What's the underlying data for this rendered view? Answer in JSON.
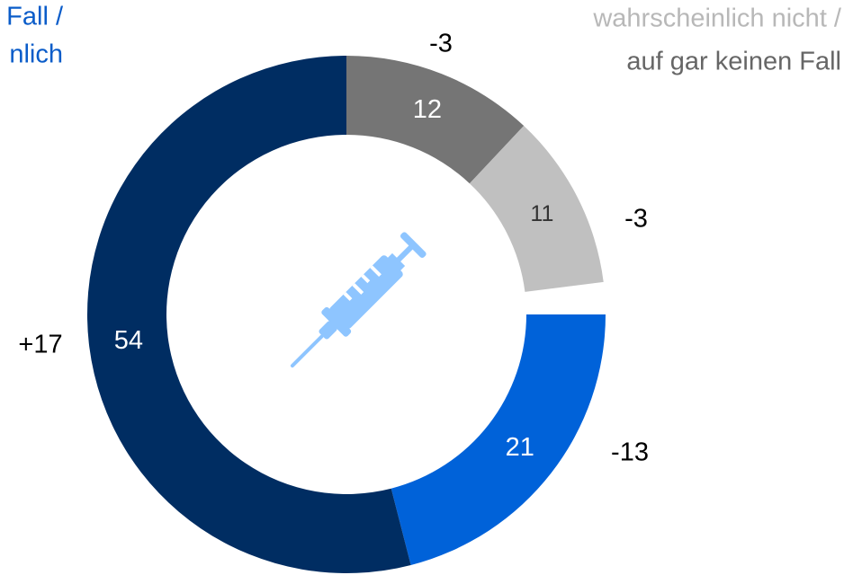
{
  "chart_data": {
    "type": "donut",
    "categories": [
      "Fall /",
      "nlich",
      "wahrscheinlich nicht /",
      "auf gar keinen Fall"
    ],
    "series": [
      {
        "name": "auf gar keinen Fall",
        "color": "#757575",
        "label_color": "#ffffff"
      },
      {
        "name": "wahrscheinlich nicht",
        "color": "#c0c0c0",
        "label_color": "#333333"
      },
      {
        "name": "wahrscheinlich",
        "color": "#0062d9",
        "label_color": "#ffffff"
      },
      {
        "name": "auf jeden Fall",
        "color": "#002d62",
        "label_color": "#ffffff"
      }
    ],
    "values": [
      12,
      11,
      21,
      54
    ],
    "changes": [
      -3,
      -3,
      -13,
      17
    ],
    "change_labels": [
      "-3",
      "-3",
      "-13",
      "+17"
    ]
  }
}
